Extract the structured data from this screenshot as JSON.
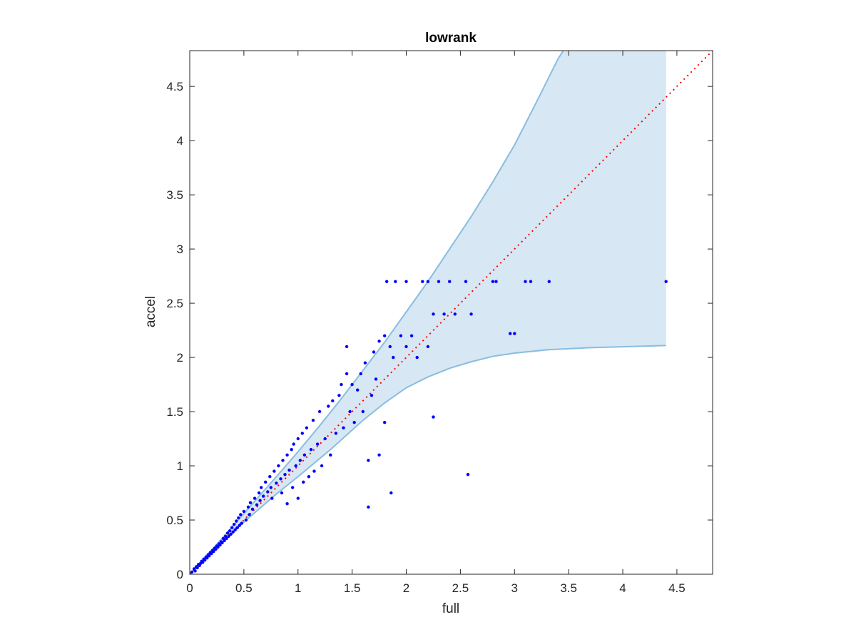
{
  "chart_data": {
    "type": "scatter",
    "title": "lowrank",
    "xlabel": "full",
    "ylabel": "accel",
    "xlim": [
      0,
      4.83
    ],
    "ylim": [
      0,
      4.83
    ],
    "xticks": [
      0,
      0.5,
      1,
      1.5,
      2,
      2.5,
      3,
      3.5,
      4,
      4.5
    ],
    "yticks": [
      0,
      0.5,
      1,
      1.5,
      2,
      2.5,
      3,
      3.5,
      4,
      4.5
    ],
    "xtick_labels": [
      "0",
      "0.5",
      "1",
      "1.5",
      "2",
      "2.5",
      "3",
      "3.5",
      "4",
      "4.5"
    ],
    "ytick_labels": [
      "0",
      "0.5",
      "1",
      "1.5",
      "2",
      "2.5",
      "3",
      "3.5",
      "4",
      "4.5"
    ],
    "grid": false,
    "colors": {
      "points": "#0000ff",
      "band_fill": "#d7e7f3",
      "band_edge": "#88bde0",
      "reference_line": "#ff0000",
      "axes": "#262626"
    },
    "reference_line": {
      "style": "dotted",
      "from": [
        0,
        0
      ],
      "to": [
        4.83,
        4.83
      ]
    },
    "band": {
      "upper": [
        [
          0,
          0
        ],
        [
          0.2,
          0.22
        ],
        [
          0.5,
          0.56
        ],
        [
          0.8,
          0.9
        ],
        [
          1.0,
          1.13
        ],
        [
          1.2,
          1.37
        ],
        [
          1.4,
          1.62
        ],
        [
          1.6,
          1.88
        ],
        [
          1.8,
          2.14
        ],
        [
          2.0,
          2.42
        ],
        [
          2.2,
          2.7
        ],
        [
          2.4,
          3.0
        ],
        [
          2.6,
          3.3
        ],
        [
          2.8,
          3.62
        ],
        [
          3.0,
          3.96
        ],
        [
          3.2,
          4.35
        ],
        [
          3.4,
          4.75
        ],
        [
          3.45,
          4.83
        ],
        [
          4.4,
          4.83
        ]
      ],
      "lower": [
        [
          0,
          0
        ],
        [
          0.2,
          0.2
        ],
        [
          0.5,
          0.48
        ],
        [
          0.8,
          0.74
        ],
        [
          1.0,
          0.9
        ],
        [
          1.3,
          1.15
        ],
        [
          1.6,
          1.42
        ],
        [
          1.8,
          1.58
        ],
        [
          2.0,
          1.72
        ],
        [
          2.2,
          1.82
        ],
        [
          2.4,
          1.9
        ],
        [
          2.6,
          1.96
        ],
        [
          2.8,
          2.01
        ],
        [
          3.0,
          2.04
        ],
        [
          3.3,
          2.07
        ],
        [
          3.7,
          2.09
        ],
        [
          4.4,
          2.11
        ]
      ]
    },
    "series": [
      {
        "values": [
          [
            0.02,
            0.02
          ],
          [
            0.04,
            0.05
          ],
          [
            0.05,
            0.03
          ],
          [
            0.06,
            0.07
          ],
          [
            0.07,
            0.06
          ],
          [
            0.08,
            0.09
          ],
          [
            0.09,
            0.08
          ],
          [
            0.1,
            0.1
          ],
          [
            0.11,
            0.12
          ],
          [
            0.12,
            0.11
          ],
          [
            0.13,
            0.14
          ],
          [
            0.14,
            0.13
          ],
          [
            0.15,
            0.16
          ],
          [
            0.16,
            0.15
          ],
          [
            0.17,
            0.18
          ],
          [
            0.18,
            0.17
          ],
          [
            0.19,
            0.2
          ],
          [
            0.2,
            0.19
          ],
          [
            0.21,
            0.22
          ],
          [
            0.22,
            0.21
          ],
          [
            0.23,
            0.24
          ],
          [
            0.24,
            0.23
          ],
          [
            0.25,
            0.26
          ],
          [
            0.26,
            0.25
          ],
          [
            0.27,
            0.28
          ],
          [
            0.28,
            0.27
          ],
          [
            0.29,
            0.3
          ],
          [
            0.3,
            0.29
          ],
          [
            0.31,
            0.33
          ],
          [
            0.32,
            0.31
          ],
          [
            0.33,
            0.35
          ],
          [
            0.34,
            0.33
          ],
          [
            0.35,
            0.38
          ],
          [
            0.36,
            0.35
          ],
          [
            0.37,
            0.4
          ],
          [
            0.38,
            0.37
          ],
          [
            0.39,
            0.43
          ],
          [
            0.4,
            0.39
          ],
          [
            0.41,
            0.46
          ],
          [
            0.42,
            0.41
          ],
          [
            0.43,
            0.49
          ],
          [
            0.44,
            0.43
          ],
          [
            0.45,
            0.52
          ],
          [
            0.46,
            0.45
          ],
          [
            0.47,
            0.55
          ],
          [
            0.48,
            0.47
          ],
          [
            0.5,
            0.58
          ],
          [
            0.52,
            0.5
          ],
          [
            0.54,
            0.62
          ],
          [
            0.55,
            0.55
          ],
          [
            0.56,
            0.66
          ],
          [
            0.58,
            0.6
          ],
          [
            0.6,
            0.7
          ],
          [
            0.62,
            0.64
          ],
          [
            0.64,
            0.75
          ],
          [
            0.65,
            0.68
          ],
          [
            0.66,
            0.8
          ],
          [
            0.68,
            0.72
          ],
          [
            0.7,
            0.85
          ],
          [
            0.72,
            0.76
          ],
          [
            0.74,
            0.9
          ],
          [
            0.75,
            0.8
          ],
          [
            0.76,
            0.7
          ],
          [
            0.78,
            0.95
          ],
          [
            0.8,
            0.84
          ],
          [
            0.82,
            1.0
          ],
          [
            0.84,
            0.88
          ],
          [
            0.85,
            0.75
          ],
          [
            0.86,
            1.05
          ],
          [
            0.88,
            0.92
          ],
          [
            0.9,
            1.1
          ],
          [
            0.9,
            0.65
          ],
          [
            0.92,
            0.96
          ],
          [
            0.94,
            1.15
          ],
          [
            0.95,
            0.8
          ],
          [
            0.96,
            1.2
          ],
          [
            0.98,
            1.0
          ],
          [
            1.0,
            1.25
          ],
          [
            1.0,
            0.7
          ],
          [
            1.02,
            1.05
          ],
          [
            1.04,
            1.3
          ],
          [
            1.05,
            0.85
          ],
          [
            1.06,
            1.1
          ],
          [
            1.08,
            1.35
          ],
          [
            1.1,
            0.9
          ],
          [
            1.12,
            1.15
          ],
          [
            1.14,
            1.42
          ],
          [
            1.15,
            0.95
          ],
          [
            1.18,
            1.2
          ],
          [
            1.2,
            1.5
          ],
          [
            1.22,
            1.0
          ],
          [
            1.25,
            1.25
          ],
          [
            1.28,
            1.55
          ],
          [
            1.3,
            1.1
          ],
          [
            1.32,
            1.6
          ],
          [
            1.35,
            1.3
          ],
          [
            1.38,
            1.65
          ],
          [
            1.4,
            1.75
          ],
          [
            1.42,
            1.35
          ],
          [
            1.45,
            2.1
          ],
          [
            1.45,
            1.85
          ],
          [
            1.48,
            1.5
          ],
          [
            1.5,
            1.75
          ],
          [
            1.52,
            1.4
          ],
          [
            1.55,
            1.7
          ],
          [
            1.58,
            1.85
          ],
          [
            1.6,
            1.5
          ],
          [
            1.62,
            1.95
          ],
          [
            1.65,
            1.05
          ],
          [
            1.65,
            0.62
          ],
          [
            1.68,
            1.65
          ],
          [
            1.7,
            2.05
          ],
          [
            1.72,
            1.8
          ],
          [
            1.75,
            1.1
          ],
          [
            1.75,
            2.15
          ],
          [
            1.8,
            2.2
          ],
          [
            1.8,
            1.4
          ],
          [
            1.82,
            2.7
          ],
          [
            1.85,
            2.1
          ],
          [
            1.86,
            0.75
          ],
          [
            1.88,
            2.0
          ],
          [
            1.9,
            2.7
          ],
          [
            1.95,
            2.2
          ],
          [
            2.0,
            2.7
          ],
          [
            2.0,
            2.1
          ],
          [
            2.05,
            2.2
          ],
          [
            2.1,
            2.0
          ],
          [
            2.15,
            2.7
          ],
          [
            2.2,
            2.1
          ],
          [
            2.2,
            2.7
          ],
          [
            2.25,
            2.4
          ],
          [
            2.25,
            1.45
          ],
          [
            2.3,
            2.7
          ],
          [
            2.35,
            2.4
          ],
          [
            2.4,
            2.7
          ],
          [
            2.45,
            2.4
          ],
          [
            2.55,
            2.7
          ],
          [
            2.57,
            0.92
          ],
          [
            2.6,
            2.4
          ],
          [
            2.8,
            2.7
          ],
          [
            2.83,
            2.7
          ],
          [
            2.96,
            2.22
          ],
          [
            3.0,
            2.22
          ],
          [
            3.1,
            2.7
          ],
          [
            3.15,
            2.7
          ],
          [
            3.32,
            2.7
          ],
          [
            4.4,
            2.7
          ]
        ]
      }
    ]
  }
}
